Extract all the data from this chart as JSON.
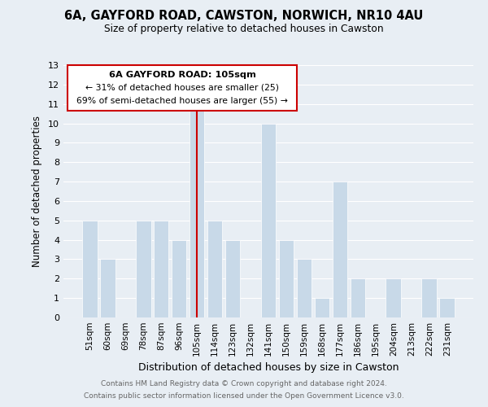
{
  "title_line1": "6A, GAYFORD ROAD, CAWSTON, NORWICH, NR10 4AU",
  "title_line2": "Size of property relative to detached houses in Cawston",
  "xlabel": "Distribution of detached houses by size in Cawston",
  "ylabel": "Number of detached properties",
  "categories": [
    "51sqm",
    "60sqm",
    "69sqm",
    "78sqm",
    "87sqm",
    "96sqm",
    "105sqm",
    "114sqm",
    "123sqm",
    "132sqm",
    "141sqm",
    "150sqm",
    "159sqm",
    "168sqm",
    "177sqm",
    "186sqm",
    "195sqm",
    "204sqm",
    "213sqm",
    "222sqm",
    "231sqm"
  ],
  "values": [
    5,
    3,
    0,
    5,
    5,
    4,
    11,
    5,
    4,
    0,
    10,
    4,
    3,
    1,
    7,
    2,
    0,
    2,
    0,
    2,
    1
  ],
  "highlight_index": 6,
  "bar_color": "#c8d9e8",
  "highlight_line_color": "#cc0000",
  "ylim": [
    0,
    13
  ],
  "yticks": [
    0,
    1,
    2,
    3,
    4,
    5,
    6,
    7,
    8,
    9,
    10,
    11,
    12,
    13
  ],
  "annotation_title": "6A GAYFORD ROAD: 105sqm",
  "annotation_line2": "← 31% of detached houses are smaller (25)",
  "annotation_line3": "69% of semi-detached houses are larger (55) →",
  "footer_line1": "Contains HM Land Registry data © Crown copyright and database right 2024.",
  "footer_line2": "Contains public sector information licensed under the Open Government Licence v3.0.",
  "grid_color": "#ffffff",
  "bg_color": "#e8eef4"
}
